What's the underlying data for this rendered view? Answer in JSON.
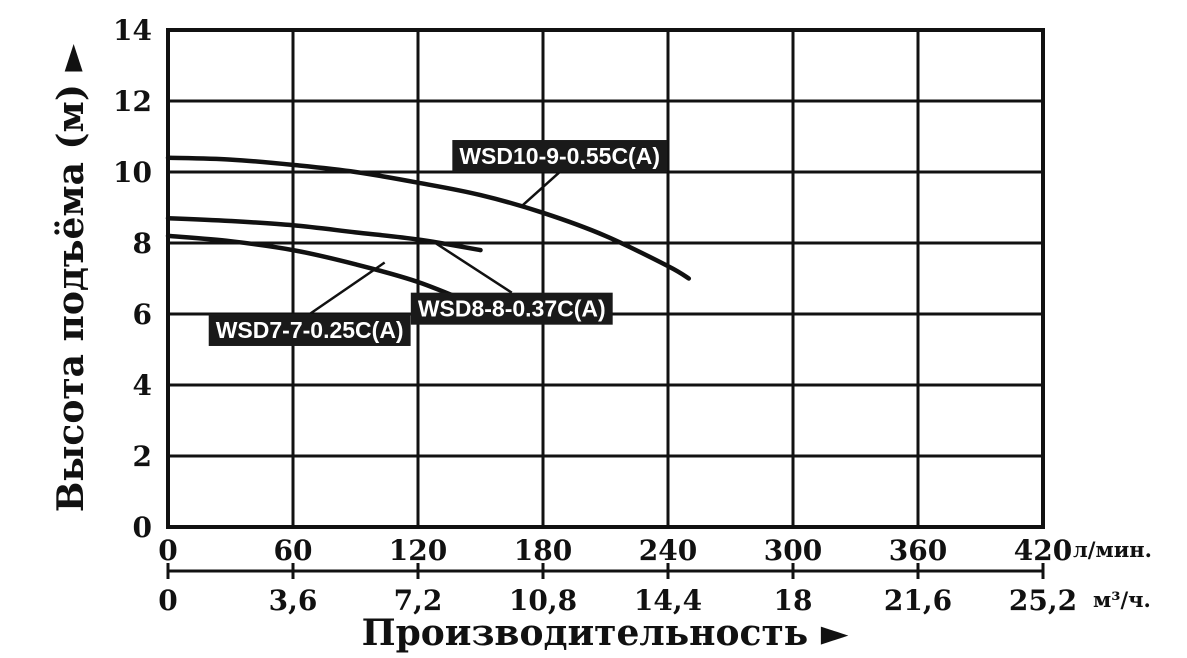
{
  "chart_data": {
    "type": "line",
    "xlabel": "Производительность ►",
    "ylabel": "Высота подъёма (м) ►",
    "x_unit": "л/мин.",
    "x2_unit": "м³/ч.",
    "xlim": [
      0,
      420
    ],
    "ylim": [
      0,
      14
    ],
    "x_ticks": [
      "0",
      "60",
      "120",
      "180",
      "240",
      "300",
      "360",
      "420"
    ],
    "x2_ticks": [
      "0",
      "3,6",
      "7,2",
      "10,8",
      "14,4",
      "18",
      "21,6",
      "25,2"
    ],
    "y_ticks": [
      "0",
      "2",
      "4",
      "6",
      "8",
      "10",
      "12",
      "14"
    ],
    "grid": true,
    "series": [
      {
        "name": "WSD10-9-0.55C(A)",
        "x": [
          0,
          30,
          60,
          90,
          120,
          150,
          180,
          210,
          240,
          250
        ],
        "y": [
          10.4,
          10.35,
          10.2,
          10.0,
          9.7,
          9.35,
          8.85,
          8.2,
          7.35,
          7.0
        ]
      },
      {
        "name": "WSD8-8-0.37C(A)",
        "x": [
          0,
          30,
          60,
          90,
          120,
          150
        ],
        "y": [
          8.7,
          8.62,
          8.5,
          8.3,
          8.1,
          7.8
        ]
      },
      {
        "name": "WSD7-7-0.25C(A)",
        "x": [
          0,
          30,
          60,
          90,
          120,
          150
        ],
        "y": [
          8.2,
          8.05,
          7.8,
          7.4,
          6.9,
          6.2
        ]
      }
    ],
    "labels": [
      {
        "text": "WSD10-9-0.55C(A)",
        "point": [
          170,
          9.05
        ],
        "box": [
          188,
          10.45
        ]
      },
      {
        "text": "WSD8-8-0.37C(A)",
        "point": [
          127,
          8.05
        ],
        "box": [
          165,
          6.15
        ]
      },
      {
        "text": "WSD7-7-0.25C(A)",
        "point": [
          104,
          7.45
        ],
        "box": [
          68,
          5.55
        ]
      }
    ]
  }
}
